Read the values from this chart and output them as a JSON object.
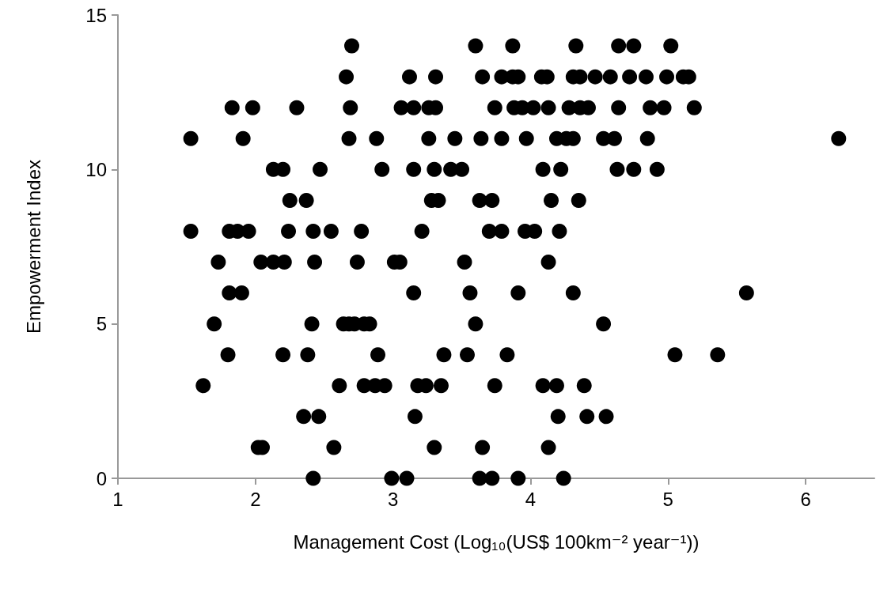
{
  "chart_data": {
    "type": "scatter",
    "xlabel": "Management Cost (Log₁₀(US$ 100km⁻² year⁻¹))",
    "ylabel": "Empowerment Index",
    "xlim": [
      1,
      6.5
    ],
    "xticks": [
      1,
      2,
      3,
      4,
      5,
      6
    ],
    "ylim": [
      0,
      15
    ],
    "yticks": [
      0,
      5,
      10,
      15
    ],
    "grid": false,
    "marker": "circle",
    "series": [
      {
        "color": "#000000",
        "x": [
          2.7,
          3.6,
          3.87,
          4.33,
          4.64,
          4.75,
          5.02,
          2.66,
          3.12,
          3.31,
          3.65,
          3.79,
          3.87,
          3.91,
          4.08,
          4.12,
          4.31,
          4.36,
          4.47,
          4.58,
          4.72,
          4.84,
          4.99,
          5.11,
          5.15,
          1.83,
          1.98,
          2.3,
          2.69,
          3.06,
          3.15,
          3.26,
          3.31,
          3.74,
          3.88,
          3.94,
          4.02,
          4.13,
          4.28,
          4.36,
          4.42,
          4.64,
          4.87,
          4.97,
          5.19,
          1.53,
          1.91,
          2.68,
          2.88,
          3.26,
          3.45,
          3.64,
          3.79,
          3.97,
          4.19,
          4.26,
          4.31,
          4.53,
          4.61,
          4.85,
          6.24,
          2.13,
          2.2,
          2.47,
          2.92,
          3.15,
          3.3,
          3.42,
          3.5,
          4.09,
          4.22,
          4.63,
          4.75,
          4.92,
          2.25,
          2.37,
          3.28,
          3.33,
          3.63,
          3.72,
          4.15,
          4.35,
          1.53,
          1.81,
          1.87,
          1.95,
          2.24,
          2.42,
          2.55,
          2.77,
          3.21,
          3.7,
          3.79,
          3.96,
          4.03,
          4.21,
          1.73,
          2.04,
          2.13,
          2.21,
          2.43,
          2.74,
          3.01,
          3.05,
          3.52,
          4.13,
          1.81,
          1.9,
          3.15,
          3.56,
          3.91,
          4.31,
          5.57,
          1.7,
          2.41,
          2.64,
          2.68,
          2.72,
          2.79,
          2.83,
          3.6,
          4.53,
          1.8,
          2.2,
          2.38,
          2.89,
          3.37,
          3.54,
          3.83,
          5.05,
          5.36,
          1.62,
          2.61,
          2.79,
          2.87,
          2.94,
          3.18,
          3.24,
          3.35,
          3.74,
          4.09,
          4.19,
          4.39,
          2.35,
          2.46,
          3.16,
          4.2,
          4.41,
          4.55,
          2.02,
          2.05,
          2.57,
          3.3,
          3.65,
          4.13,
          2.42,
          2.99,
          3.1,
          3.63,
          3.72,
          3.91,
          4.24
        ],
        "values": [
          14,
          14,
          14,
          14,
          14,
          14,
          14,
          13,
          13,
          13,
          13,
          13,
          13,
          13,
          13,
          13,
          13,
          13,
          13,
          13,
          13,
          13,
          13,
          13,
          13,
          12,
          12,
          12,
          12,
          12,
          12,
          12,
          12,
          12,
          12,
          12,
          12,
          12,
          12,
          12,
          12,
          12,
          12,
          12,
          12,
          11,
          11,
          11,
          11,
          11,
          11,
          11,
          11,
          11,
          11,
          11,
          11,
          11,
          11,
          11,
          11,
          10,
          10,
          10,
          10,
          10,
          10,
          10,
          10,
          10,
          10,
          10,
          10,
          10,
          9,
          9,
          9,
          9,
          9,
          9,
          9,
          9,
          8,
          8,
          8,
          8,
          8,
          8,
          8,
          8,
          8,
          8,
          8,
          8,
          8,
          8,
          7,
          7,
          7,
          7,
          7,
          7,
          7,
          7,
          7,
          7,
          6,
          6,
          6,
          6,
          6,
          6,
          6,
          5,
          5,
          5,
          5,
          5,
          5,
          5,
          5,
          5,
          4,
          4,
          4,
          4,
          4,
          4,
          4,
          4,
          4,
          3,
          3,
          3,
          3,
          3,
          3,
          3,
          3,
          3,
          3,
          3,
          3,
          2,
          2,
          2,
          2,
          2,
          2,
          1,
          1,
          1,
          1,
          1,
          1,
          0,
          0,
          0,
          0,
          0,
          0,
          0
        ]
      }
    ]
  }
}
